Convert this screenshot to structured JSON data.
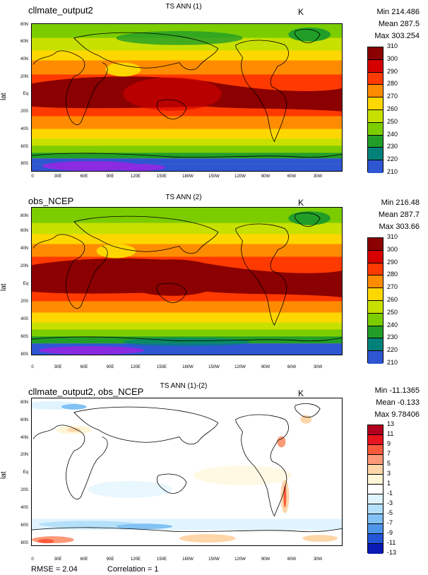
{
  "x_ticks": [
    "0",
    "30E",
    "60E",
    "90E",
    "120E",
    "150E",
    "180W",
    "150W",
    "120W",
    "90W",
    "60W",
    "30W"
  ],
  "y_ticks": [
    "80N",
    "60N",
    "40N",
    "20N",
    "Eq",
    "20S",
    "40S",
    "60S",
    "80S"
  ],
  "y_axis_title": "lat",
  "panels": [
    {
      "case": "cllmate_output2",
      "title": "TS ANN (1)",
      "units": "K",
      "stats": {
        "min": "Min 214.486",
        "mean": "Mean 287.5",
        "max": "Max 303.254"
      },
      "colorbar": {
        "labels": [
          "310",
          "300",
          "290",
          "280",
          "270",
          "260",
          "250",
          "240",
          "230",
          "220",
          "210"
        ],
        "colors": [
          "#8b0000",
          "#d70000",
          "#ff3a00",
          "#ff8c00",
          "#ffd700",
          "#c8e000",
          "#7ccd00",
          "#229e28",
          "#00827a",
          "#2e56d2",
          "#8a2be2"
        ]
      }
    },
    {
      "case": "obs_NCEP",
      "title": "TS ANN (2)",
      "units": "K",
      "stats": {
        "min": "Min 216.48",
        "mean": "Mean 287.7",
        "max": "Max 303.66"
      },
      "colorbar": {
        "labels": [
          "310",
          "300",
          "290",
          "280",
          "270",
          "260",
          "250",
          "240",
          "230",
          "220",
          "210"
        ],
        "colors": [
          "#8b0000",
          "#d70000",
          "#ff3a00",
          "#ff8c00",
          "#ffd700",
          "#c8e000",
          "#7ccd00",
          "#229e28",
          "#00827a",
          "#2e56d2",
          "#8a2be2"
        ]
      }
    },
    {
      "case": "cllmate_output2, obs_NCEP",
      "title": "TS ANN (1)-(2)",
      "units": "K",
      "stats": {
        "min": "Min -11.1365",
        "mean": "Mean -0.133",
        "max": "Max 9.78406"
      },
      "colorbar": {
        "labels": [
          "13",
          "11",
          "9",
          "7",
          "5",
          "3",
          "1",
          "-1",
          "-3",
          "-5",
          "-7",
          "-9",
          "-11",
          "-13"
        ],
        "colors": [
          "#b2001e",
          "#e8141e",
          "#f85a3c",
          "#fc9a78",
          "#fed6a8",
          "#fff6d8",
          "#ffffff",
          "#e0f4ff",
          "#b4e0fa",
          "#82c2f4",
          "#4e96ea",
          "#2456d8",
          "#0a1ab4"
        ]
      }
    }
  ],
  "footer": {
    "rmse": "RMSE = 2.04",
    "correlation": "Correlation = 1"
  }
}
